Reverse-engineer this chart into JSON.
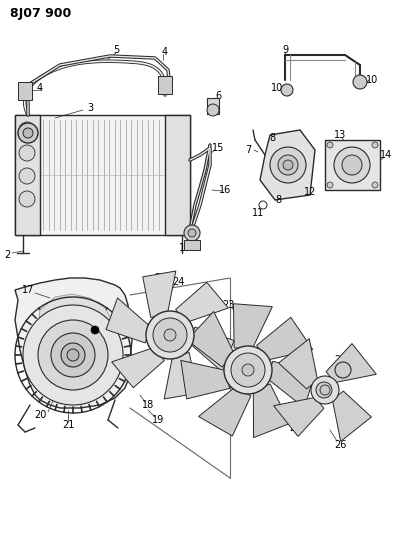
{
  "title": "8J07 900",
  "bg_color": "#ffffff",
  "line_color": "#2a2a2a",
  "fig_width": 3.93,
  "fig_height": 5.33,
  "dpi": 100
}
